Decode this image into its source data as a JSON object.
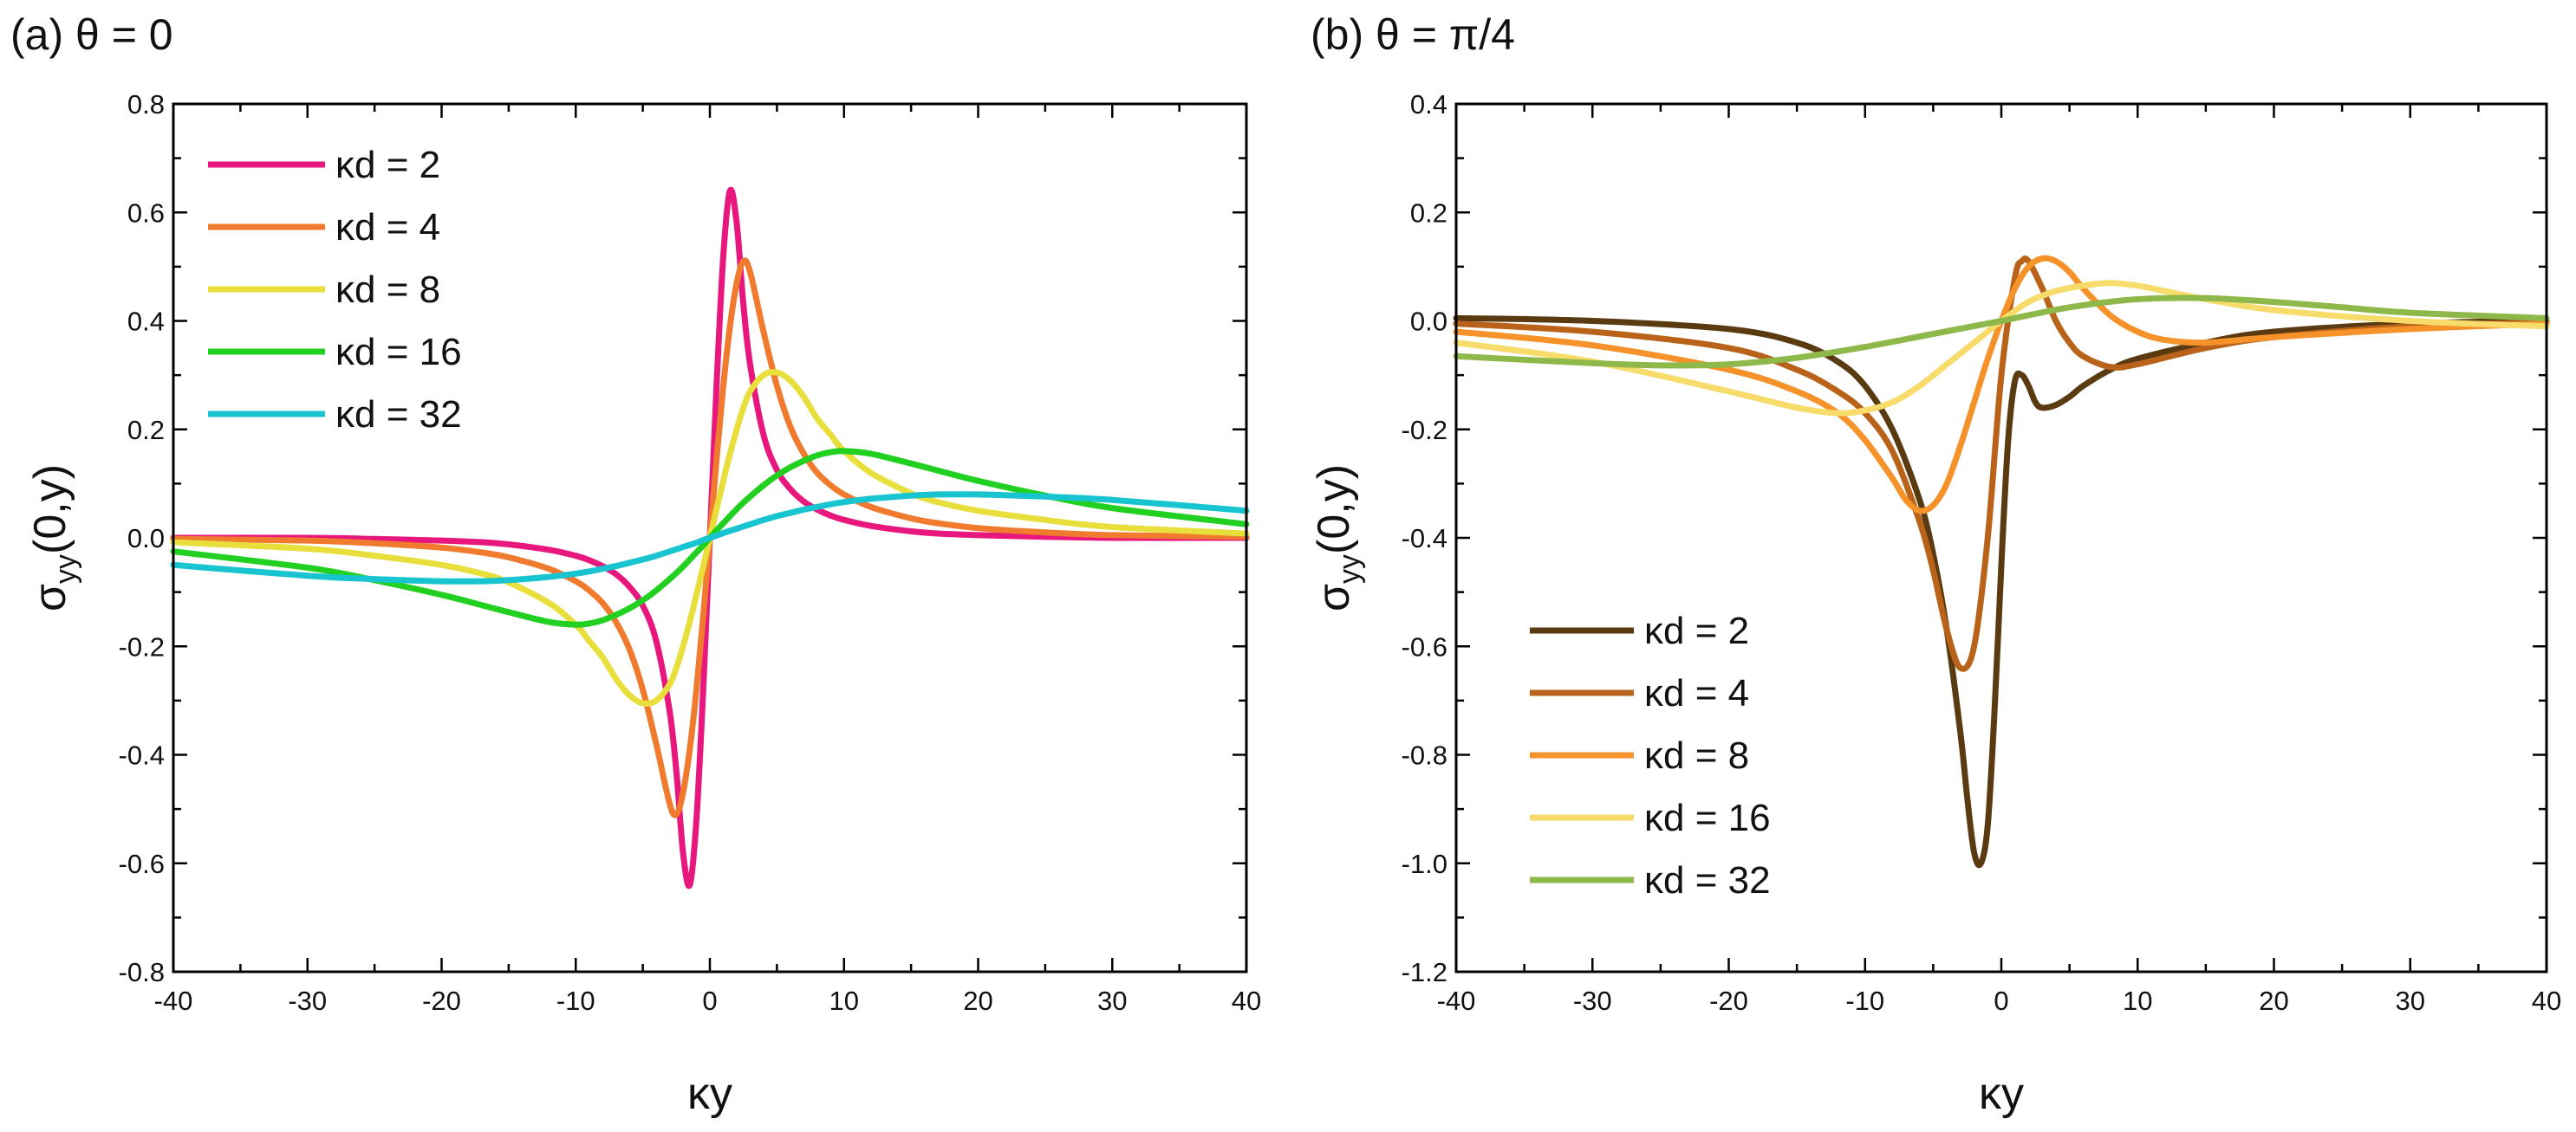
{
  "chart_data": [
    {
      "type": "line",
      "title": "(a) θ = 0",
      "xlabel": "κy",
      "ylabel": {
        "base": "σ",
        "sub": "yy",
        "rest": "(0,y)"
      },
      "xlim": [
        -40,
        40
      ],
      "ylim": [
        -0.8,
        0.8
      ],
      "xticks": [
        -40,
        -30,
        -20,
        -10,
        0,
        10,
        20,
        30,
        40
      ],
      "xtick_labels": [
        "-40",
        "-30",
        "-20",
        "-10",
        "0",
        "10",
        "20",
        "30",
        "40"
      ],
      "yticks": [
        -0.8,
        -0.6,
        -0.4,
        -0.2,
        0.0,
        0.2,
        0.4,
        0.6,
        0.8
      ],
      "ytick_labels": [
        "-0.8",
        "-0.6",
        "-0.4",
        "-0.2",
        "0.0",
        "0.2",
        "0.4",
        "0.6",
        "0.8"
      ],
      "legend_position": "top-left",
      "x": [
        -40,
        -30,
        -25,
        -20,
        -17,
        -15,
        -12,
        -10,
        -9,
        -8,
        -7,
        -6,
        -5,
        -4,
        -3,
        -2.5,
        -2,
        -1.5,
        -1,
        -0.5,
        0,
        0.5,
        1,
        1.5,
        2,
        2.5,
        3,
        4,
        5,
        6,
        7,
        8,
        9,
        10,
        12,
        15,
        17,
        20,
        25,
        30,
        40
      ],
      "series": [
        {
          "name": "κd = 2",
          "color": "#e8177e",
          "values": [
            0.0,
            0.0,
            -0.002,
            -0.005,
            -0.008,
            -0.012,
            -0.022,
            -0.033,
            -0.041,
            -0.052,
            -0.067,
            -0.09,
            -0.125,
            -0.19,
            -0.32,
            -0.43,
            -0.58,
            -0.64,
            -0.52,
            -0.28,
            0.0,
            0.28,
            0.52,
            0.64,
            0.58,
            0.43,
            0.32,
            0.19,
            0.125,
            0.09,
            0.067,
            0.052,
            0.041,
            0.033,
            0.022,
            0.012,
            0.008,
            0.005,
            0.002,
            0.0,
            0.0
          ]
        },
        {
          "name": "κd = 4",
          "color": "#f07b2e",
          "values": [
            -0.002,
            -0.005,
            -0.01,
            -0.018,
            -0.027,
            -0.036,
            -0.057,
            -0.08,
            -0.097,
            -0.12,
            -0.155,
            -0.205,
            -0.28,
            -0.38,
            -0.49,
            -0.51,
            -0.47,
            -0.39,
            -0.28,
            -0.145,
            0.0,
            0.145,
            0.28,
            0.39,
            0.47,
            0.51,
            0.49,
            0.38,
            0.28,
            0.205,
            0.155,
            0.12,
            0.097,
            0.08,
            0.057,
            0.036,
            0.027,
            0.018,
            0.01,
            0.005,
            0.002
          ]
        },
        {
          "name": "κd = 8",
          "color": "#e8df3c",
          "values": [
            -0.008,
            -0.02,
            -0.033,
            -0.05,
            -0.066,
            -0.082,
            -0.12,
            -0.16,
            -0.19,
            -0.22,
            -0.26,
            -0.29,
            -0.305,
            -0.3,
            -0.27,
            -0.24,
            -0.2,
            -0.155,
            -0.105,
            -0.053,
            0.0,
            0.053,
            0.105,
            0.155,
            0.2,
            0.24,
            0.27,
            0.3,
            0.305,
            0.29,
            0.26,
            0.22,
            0.19,
            0.16,
            0.12,
            0.082,
            0.066,
            0.05,
            0.033,
            0.02,
            0.008
          ]
        },
        {
          "name": "κd = 16",
          "color": "#22d022",
          "values": [
            -0.025,
            -0.055,
            -0.078,
            -0.105,
            -0.124,
            -0.137,
            -0.155,
            -0.16,
            -0.158,
            -0.152,
            -0.142,
            -0.13,
            -0.115,
            -0.097,
            -0.076,
            -0.065,
            -0.053,
            -0.04,
            -0.027,
            -0.014,
            0.0,
            0.014,
            0.027,
            0.04,
            0.053,
            0.065,
            0.076,
            0.097,
            0.115,
            0.13,
            0.142,
            0.152,
            0.158,
            0.16,
            0.155,
            0.137,
            0.124,
            0.105,
            0.078,
            0.055,
            0.025
          ]
        },
        {
          "name": "κd = 32",
          "color": "#17c4d0",
          "values": [
            -0.05,
            -0.07,
            -0.076,
            -0.08,
            -0.08,
            -0.078,
            -0.072,
            -0.066,
            -0.062,
            -0.057,
            -0.052,
            -0.046,
            -0.04,
            -0.033,
            -0.025,
            -0.021,
            -0.017,
            -0.013,
            -0.009,
            -0.004,
            0.0,
            0.004,
            0.009,
            0.013,
            0.017,
            0.021,
            0.025,
            0.033,
            0.04,
            0.046,
            0.052,
            0.057,
            0.062,
            0.066,
            0.072,
            0.078,
            0.08,
            0.08,
            0.076,
            0.07,
            0.05
          ]
        }
      ]
    },
    {
      "type": "line",
      "title": "(b) θ = π/4",
      "xlabel": "κy",
      "ylabel": {
        "base": "σ",
        "sub": "yy",
        "rest": "(0,y)"
      },
      "xlim": [
        -40,
        40
      ],
      "ylim": [
        -1.2,
        0.4
      ],
      "xticks": [
        -40,
        -30,
        -20,
        -10,
        0,
        10,
        20,
        30,
        40
      ],
      "xtick_labels": [
        "-40",
        "-30",
        "-20",
        "-10",
        "0",
        "10",
        "20",
        "30",
        "40"
      ],
      "yticks": [
        -1.2,
        -1.0,
        -0.8,
        -0.6,
        -0.4,
        -0.2,
        0.0,
        0.2,
        0.4
      ],
      "ytick_labels": [
        "-1.2",
        "-1.0",
        "-0.8",
        "-0.6",
        "-0.4",
        "-0.2",
        "0.0",
        "0.2",
        "0.4"
      ],
      "legend_position": "bottom-left",
      "series": [
        {
          "name": "κd = 2",
          "color": "#5a3a10",
          "x": [
            -40,
            -30,
            -20,
            -15,
            -12,
            -10,
            -8,
            -6,
            -5,
            -4,
            -3,
            -2.5,
            -2,
            -1.5,
            -1,
            -0.5,
            0,
            0.5,
            1,
            1.5,
            2,
            2.5,
            3,
            4,
            5,
            6,
            8,
            10,
            15,
            20,
            30,
            40
          ],
          "values": [
            0.005,
            0.0,
            -0.015,
            -0.04,
            -0.075,
            -0.12,
            -0.2,
            -0.33,
            -0.43,
            -0.57,
            -0.76,
            -0.88,
            -0.98,
            -1.0,
            -0.93,
            -0.72,
            -0.45,
            -0.22,
            -0.11,
            -0.1,
            -0.12,
            -0.15,
            -0.16,
            -0.155,
            -0.14,
            -0.12,
            -0.09,
            -0.07,
            -0.04,
            -0.02,
            -0.005,
            0.0
          ]
        },
        {
          "name": "κd = 4",
          "color": "#b8621a",
          "x": [
            -40,
            -30,
            -20,
            -15,
            -12,
            -10,
            -8,
            -6,
            -5,
            -4,
            -3,
            -2,
            -1,
            0,
            1,
            1.5,
            2,
            3,
            4,
            5,
            6,
            8,
            10,
            15,
            20,
            30,
            40
          ],
          "values": [
            -0.005,
            -0.02,
            -0.05,
            -0.09,
            -0.13,
            -0.17,
            -0.24,
            -0.37,
            -0.46,
            -0.57,
            -0.64,
            -0.6,
            -0.4,
            -0.1,
            0.08,
            0.11,
            0.11,
            0.06,
            0.0,
            -0.04,
            -0.065,
            -0.085,
            -0.08,
            -0.05,
            -0.03,
            -0.01,
            -0.003
          ]
        },
        {
          "name": "κd = 8",
          "color": "#f5922a",
          "x": [
            -40,
            -30,
            -20,
            -15,
            -12,
            -10,
            -8,
            -7,
            -6,
            -5,
            -4,
            -3,
            -2,
            -1,
            0,
            1,
            2,
            3,
            4,
            5,
            6,
            8,
            10,
            12,
            15,
            20,
            30,
            40
          ],
          "values": [
            -0.02,
            -0.045,
            -0.09,
            -0.13,
            -0.17,
            -0.22,
            -0.29,
            -0.33,
            -0.35,
            -0.34,
            -0.3,
            -0.23,
            -0.15,
            -0.07,
            0.0,
            0.06,
            0.1,
            0.115,
            0.11,
            0.09,
            0.06,
            0.01,
            -0.02,
            -0.035,
            -0.04,
            -0.03,
            -0.015,
            -0.005
          ]
        },
        {
          "name": "κd = 16",
          "color": "#f7dc6b",
          "x": [
            -40,
            -30,
            -20,
            -15,
            -12,
            -10,
            -8,
            -6,
            -4,
            -2,
            0,
            2,
            4,
            6,
            8,
            10,
            12,
            15,
            20,
            30,
            40
          ],
          "values": [
            -0.04,
            -0.075,
            -0.13,
            -0.16,
            -0.17,
            -0.165,
            -0.15,
            -0.12,
            -0.08,
            -0.04,
            0.0,
            0.035,
            0.055,
            0.065,
            0.07,
            0.065,
            0.055,
            0.04,
            0.02,
            0.0,
            -0.01
          ]
        },
        {
          "name": "κd = 32",
          "color": "#8fb84a",
          "x": [
            -40,
            -30,
            -25,
            -20,
            -15,
            -10,
            -5,
            0,
            5,
            10,
            15,
            20,
            25,
            30,
            40
          ],
          "values": [
            -0.065,
            -0.078,
            -0.082,
            -0.08,
            -0.068,
            -0.048,
            -0.024,
            0.0,
            0.025,
            0.04,
            0.042,
            0.035,
            0.025,
            0.015,
            0.005
          ]
        }
      ]
    }
  ]
}
